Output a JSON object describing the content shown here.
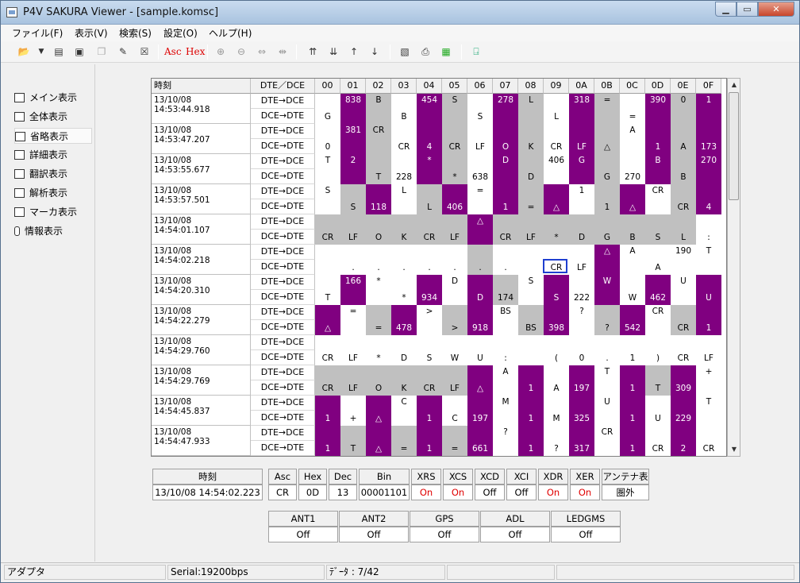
{
  "window": {
    "title": "P4V SAKURA Viewer - [sample.komsc]"
  },
  "menu": [
    "ファイル(F)",
    "表示(V)",
    "検索(S)",
    "設定(O)",
    "ヘルプ(H)"
  ],
  "toolbar": {
    "asc_label": "Asc",
    "hex_label": "Hex"
  },
  "nav": [
    {
      "label": "メイン表示",
      "icon": "main-view-icon"
    },
    {
      "label": "全体表示",
      "icon": "overview-icon"
    },
    {
      "label": "省略表示",
      "icon": "abbrev-view-icon",
      "selected": true
    },
    {
      "label": "詳細表示",
      "icon": "detail-view-icon"
    },
    {
      "label": "翻訳表示",
      "icon": "translate-view-icon"
    },
    {
      "label": "解析表示",
      "icon": "analysis-view-icon"
    },
    {
      "label": "マーカ表示",
      "icon": "marker-view-icon"
    },
    {
      "label": "情報表示",
      "icon": "info-view-icon"
    }
  ],
  "grid": {
    "time_header": "時刻",
    "dir_header": "DTE／DCE",
    "col_headers": [
      "00",
      "01",
      "02",
      "03",
      "04",
      "05",
      "06",
      "07",
      "08",
      "09",
      "0A",
      "0B",
      "0C",
      "0D",
      "0E",
      "0F"
    ],
    "dir_dte_dce": "DTE→DCE",
    "dir_dce_dte": "DCE→DTE",
    "rows": [
      {
        "time": "13/10/08 14:53:44.918",
        "top": [
          "",
          "838",
          "B",
          "",
          "454",
          "S",
          "",
          "278",
          "L",
          "",
          "318",
          "=",
          "",
          "390",
          "0",
          "1"
        ],
        "bot": [
          "G",
          "",
          "",
          "B",
          "",
          "",
          "S",
          "",
          "",
          "L",
          "",
          "",
          "=",
          "",
          "",
          ""
        ]
      },
      {
        "time": "13/10/08 14:53:47.207",
        "top": [
          "",
          "381",
          "CR",
          "",
          "",
          "",
          "",
          "",
          "",
          "",
          "",
          "",
          "A",
          "",
          "",
          ""
        ],
        "bot": [
          "0",
          "",
          "",
          "CR",
          "4",
          "CR",
          "LF",
          "O",
          "K",
          "CR",
          "LF",
          "△",
          "",
          "1",
          "A",
          "173"
        ]
      },
      {
        "time": "13/10/08 14:53:55.677",
        "top": [
          "T",
          "2",
          "",
          "",
          "*",
          "",
          "",
          "D",
          "",
          "406",
          "G",
          "",
          "",
          "B",
          "",
          "270"
        ],
        "bot": [
          "",
          "",
          "T",
          "228",
          "",
          "*",
          "638",
          "",
          "D",
          "",
          "",
          "G",
          "270",
          "",
          "B",
          ""
        ]
      },
      {
        "time": "13/10/08 14:53:57.501",
        "top": [
          "S",
          "",
          "",
          "L",
          "",
          "",
          "=",
          "",
          "",
          "",
          "1",
          "",
          "",
          "CR",
          "",
          ""
        ],
        "bot": [
          "",
          "S",
          "118",
          "",
          "L",
          "406",
          "",
          "1",
          "=",
          "△",
          "",
          "1",
          "△",
          "",
          "CR",
          "4"
        ]
      },
      {
        "time": "13/10/08 14:54:01.107",
        "top": [
          "",
          "",
          "",
          "",
          "",
          "",
          "△",
          "",
          "",
          "",
          "",
          "",
          "",
          "",
          "",
          ""
        ],
        "bot": [
          "CR",
          "LF",
          "O",
          "K",
          "CR",
          "LF",
          "",
          "CR",
          "LF",
          "*",
          "D",
          "G",
          "B",
          "S",
          "L",
          ":"
        ]
      },
      {
        "time": "13/10/08 14:54:02.218",
        "top": [
          "",
          "",
          "",
          "",
          "",
          "",
          "",
          "",
          "",
          "",
          "",
          "△",
          "A",
          "",
          "190",
          "T"
        ],
        "bot": [
          "",
          ".",
          ".",
          ".",
          ".",
          ".",
          ".",
          ".",
          "",
          "CR",
          "LF",
          "",
          "",
          "A",
          "",
          ""
        ]
      },
      {
        "time": "13/10/08 14:54:20.310",
        "top": [
          "",
          "166",
          "*",
          "",
          "",
          "D",
          "",
          "",
          "S",
          "",
          "",
          "W",
          "",
          "",
          "U",
          ""
        ],
        "bot": [
          "T",
          "",
          "",
          "*",
          "934",
          "",
          "D",
          "174",
          "",
          "S",
          "222",
          "",
          "W",
          "462",
          "",
          "U"
        ]
      },
      {
        "time": "13/10/08 14:54:22.279",
        "top": [
          "",
          "=",
          "",
          "",
          "&gt;",
          "",
          "",
          "BS",
          "",
          "",
          "?",
          "",
          "",
          "CR",
          "",
          ""
        ],
        "bot": [
          "△",
          "",
          "=",
          "478",
          "",
          "&gt;",
          "918",
          "",
          "BS",
          "398",
          "",
          "?",
          "542",
          "",
          "CR",
          "1"
        ]
      },
      {
        "time": "13/10/08 14:54:29.760",
        "top": [
          "",
          "",
          "",
          "",
          "",
          "",
          "",
          "",
          "",
          "",
          "",
          "",
          "",
          "",
          "",
          ""
        ],
        "bot": [
          "CR",
          "LF",
          "*",
          "D",
          "S",
          "W",
          "U",
          ":",
          "",
          "(",
          "0",
          ".",
          "1",
          ")",
          "CR",
          "LF"
        ]
      },
      {
        "time": "13/10/08 14:54:29.769",
        "top": [
          "",
          "",
          "",
          "",
          "",
          "",
          "",
          "A",
          "",
          "",
          "",
          "T",
          "",
          "",
          "",
          "+"
        ],
        "bot": [
          "CR",
          "LF",
          "O",
          "K",
          "CR",
          "LF",
          "△",
          "",
          "1",
          "A",
          "197",
          "",
          "1",
          "T",
          "309",
          ""
        ]
      },
      {
        "time": "13/10/08 14:54:45.837",
        "top": [
          "",
          "",
          "",
          "C",
          "",
          "",
          "",
          "M",
          "",
          "",
          "",
          "U",
          "",
          "",
          "",
          "T"
        ],
        "bot": [
          "1",
          "+",
          "△",
          "",
          "1",
          "C",
          "197",
          "",
          "1",
          "M",
          "325",
          "",
          "1",
          "U",
          "229",
          ""
        ]
      },
      {
        "time": "13/10/08 14:54:47.933",
        "top": [
          "",
          "",
          "",
          "",
          "",
          "",
          "",
          "?",
          "",
          "",
          "",
          "CR",
          "",
          "",
          "",
          ""
        ],
        "bot": [
          "1",
          "T",
          "△",
          "=",
          "1",
          "=",
          "661",
          "",
          "1",
          "?",
          "317",
          "",
          "1",
          "CR",
          "2",
          "CR"
        ]
      }
    ]
  },
  "info": {
    "time_label": "時刻",
    "time_value": "13/10/08 14:54:02.223",
    "cols": [
      {
        "h": "Asc",
        "v": "CR",
        "red": false
      },
      {
        "h": "Hex",
        "v": "0D",
        "red": false
      },
      {
        "h": "Dec",
        "v": "13",
        "red": false
      },
      {
        "h": "Bin",
        "v": "00001101",
        "red": false
      },
      {
        "h": "XRS",
        "v": "On",
        "red": true
      },
      {
        "h": "XCS",
        "v": "On",
        "red": true
      },
      {
        "h": "XCD",
        "v": "Off",
        "red": false
      },
      {
        "h": "XCI",
        "v": "Off",
        "red": false
      },
      {
        "h": "XDR",
        "v": "On",
        "red": true
      },
      {
        "h": "XER",
        "v": "On",
        "red": true
      },
      {
        "h": "アンテナ表示",
        "v": "圏外",
        "red": false
      }
    ],
    "leds": [
      {
        "h": "ANT1",
        "v": "Off"
      },
      {
        "h": "ANT2",
        "v": "Off"
      },
      {
        "h": "GPS",
        "v": "Off"
      },
      {
        "h": "ADL",
        "v": "Off"
      },
      {
        "h": "LEDGMS",
        "v": "Off"
      }
    ]
  },
  "status": {
    "adapter": "アダプタ",
    "serial": "Serial:19200bps",
    "data": "ﾃﾞｰﾀ : 7/42"
  }
}
